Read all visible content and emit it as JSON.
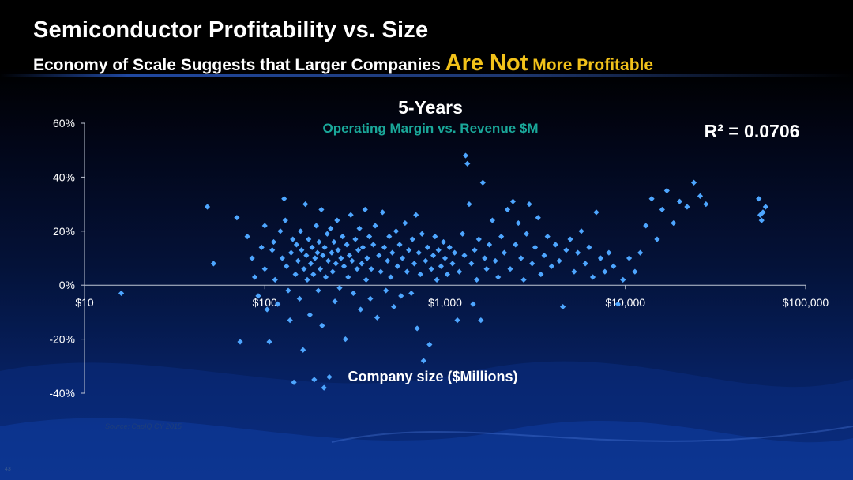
{
  "slide": {
    "title": "Semiconductor Profitability vs. Size",
    "subtitle_prefix": "Economy of Scale Suggests that Larger Companies ",
    "subtitle_highlight": "Are Not",
    "subtitle_suffix": " More Profitable",
    "source": "Source: CapIQ CY 2015",
    "page_number": "43",
    "colors": {
      "background": "#000000",
      "highlight": "#f2c21a",
      "title": "#ffffff",
      "subtitle_chart": "#1aa89a",
      "point": "#4ea6ff"
    }
  },
  "chart_data": {
    "type": "scatter",
    "title": "5-Years",
    "subtitle": "Operating Margin vs. Revenue $M",
    "annotation": "R² = 0.0706",
    "xlabel": "Company size ($Millions)",
    "ylabel": "",
    "x_scale": "log",
    "xlim": [
      10,
      100000
    ],
    "ylim": [
      -40,
      60
    ],
    "x_ticks": [
      10,
      100,
      1000,
      10000,
      100000
    ],
    "x_tick_labels": [
      "$10",
      "$100",
      "$1,000",
      "$10,000",
      "$100,000"
    ],
    "y_ticks": [
      -40,
      -20,
      0,
      20,
      40,
      60
    ],
    "y_tick_labels": [
      "-40%",
      "-20%",
      "0%",
      "20%",
      "40%",
      "60%"
    ],
    "grid": false,
    "series": [
      {
        "marker": "diamond",
        "color": "#4ea6ff",
        "points": [
          [
            16,
            -3
          ],
          [
            48,
            29
          ],
          [
            52,
            8
          ],
          [
            70,
            25
          ],
          [
            73,
            -21
          ],
          [
            80,
            18
          ],
          [
            85,
            10
          ],
          [
            88,
            3
          ],
          [
            92,
            -4
          ],
          [
            96,
            14
          ],
          [
            100,
            22
          ],
          [
            100,
            6
          ],
          [
            103,
            -9
          ],
          [
            106,
            -21
          ],
          [
            110,
            13
          ],
          [
            112,
            16
          ],
          [
            114,
            2
          ],
          [
            118,
            -7
          ],
          [
            122,
            20
          ],
          [
            125,
            10
          ],
          [
            128,
            32
          ],
          [
            130,
            24
          ],
          [
            132,
            7
          ],
          [
            135,
            -2
          ],
          [
            138,
            -13
          ],
          [
            140,
            12
          ],
          [
            143,
            17
          ],
          [
            145,
            -36
          ],
          [
            148,
            4
          ],
          [
            150,
            15
          ],
          [
            153,
            9
          ],
          [
            156,
            -5
          ],
          [
            158,
            20
          ],
          [
            160,
            13
          ],
          [
            163,
            -24
          ],
          [
            165,
            6
          ],
          [
            168,
            30
          ],
          [
            170,
            11
          ],
          [
            172,
            2
          ],
          [
            175,
            17
          ],
          [
            178,
            -11
          ],
          [
            180,
            8
          ],
          [
            183,
            14
          ],
          [
            186,
            4
          ],
          [
            188,
            -35
          ],
          [
            190,
            10
          ],
          [
            193,
            22
          ],
          [
            196,
            12
          ],
          [
            198,
            -2
          ],
          [
            200,
            16
          ],
          [
            203,
            6
          ],
          [
            206,
            28
          ],
          [
            208,
            -15
          ],
          [
            210,
            11
          ],
          [
            213,
            -38
          ],
          [
            215,
            14
          ],
          [
            218,
            3
          ],
          [
            222,
            19
          ],
          [
            225,
            9
          ],
          [
            228,
            -34
          ],
          [
            232,
            21
          ],
          [
            235,
            12
          ],
          [
            238,
            5
          ],
          [
            242,
            16
          ],
          [
            245,
            -6
          ],
          [
            248,
            8
          ],
          [
            252,
            24
          ],
          [
            255,
            13
          ],
          [
            260,
            -1
          ],
          [
            265,
            10
          ],
          [
            270,
            18
          ],
          [
            275,
            7
          ],
          [
            280,
            -20
          ],
          [
            285,
            15
          ],
          [
            290,
            3
          ],
          [
            295,
            11
          ],
          [
            300,
            26
          ],
          [
            305,
            9
          ],
          [
            310,
            -3
          ],
          [
            318,
            17
          ],
          [
            325,
            6
          ],
          [
            330,
            13
          ],
          [
            335,
            21
          ],
          [
            340,
            -9
          ],
          [
            345,
            8
          ],
          [
            350,
            14
          ],
          [
            360,
            28
          ],
          [
            365,
            2
          ],
          [
            370,
            10
          ],
          [
            380,
            18
          ],
          [
            385,
            -5
          ],
          [
            390,
            6
          ],
          [
            400,
            15
          ],
          [
            410,
            22
          ],
          [
            420,
            -12
          ],
          [
            430,
            11
          ],
          [
            440,
            5
          ],
          [
            450,
            27
          ],
          [
            460,
            14
          ],
          [
            470,
            -2
          ],
          [
            480,
            9
          ],
          [
            490,
            18
          ],
          [
            500,
            3
          ],
          [
            510,
            12
          ],
          [
            520,
            -8
          ],
          [
            535,
            20
          ],
          [
            545,
            7
          ],
          [
            560,
            15
          ],
          [
            570,
            -4
          ],
          [
            580,
            10
          ],
          [
            600,
            23
          ],
          [
            615,
            5
          ],
          [
            630,
            13
          ],
          [
            650,
            -3
          ],
          [
            660,
            17
          ],
          [
            675,
            8
          ],
          [
            690,
            26
          ],
          [
            700,
            -16
          ],
          [
            715,
            12
          ],
          [
            730,
            4
          ],
          [
            745,
            19
          ],
          [
            760,
            -28
          ],
          [
            780,
            9
          ],
          [
            800,
            14
          ],
          [
            820,
            -22
          ],
          [
            840,
            6
          ],
          [
            860,
            11
          ],
          [
            880,
            18
          ],
          [
            900,
            2
          ],
          [
            920,
            13
          ],
          [
            950,
            7
          ],
          [
            980,
            16
          ],
          [
            1000,
            10
          ],
          [
            1030,
            4
          ],
          [
            1060,
            14
          ],
          [
            1100,
            8
          ],
          [
            1130,
            12
          ],
          [
            1170,
            -13
          ],
          [
            1200,
            5
          ],
          [
            1250,
            19
          ],
          [
            1280,
            11
          ],
          [
            1300,
            48
          ],
          [
            1330,
            45
          ],
          [
            1360,
            30
          ],
          [
            1400,
            8
          ],
          [
            1430,
            -7
          ],
          [
            1460,
            13
          ],
          [
            1500,
            2
          ],
          [
            1540,
            17
          ],
          [
            1580,
            -13
          ],
          [
            1620,
            38
          ],
          [
            1660,
            10
          ],
          [
            1700,
            6
          ],
          [
            1760,
            15
          ],
          [
            1830,
            24
          ],
          [
            1900,
            9
          ],
          [
            1970,
            3
          ],
          [
            2050,
            18
          ],
          [
            2130,
            12
          ],
          [
            2220,
            28
          ],
          [
            2300,
            6
          ],
          [
            2380,
            31
          ],
          [
            2460,
            15
          ],
          [
            2550,
            23
          ],
          [
            2640,
            10
          ],
          [
            2730,
            2
          ],
          [
            2830,
            19
          ],
          [
            2930,
            30
          ],
          [
            3040,
            8
          ],
          [
            3160,
            14
          ],
          [
            3280,
            25
          ],
          [
            3400,
            4
          ],
          [
            3550,
            11
          ],
          [
            3700,
            18
          ],
          [
            3900,
            7
          ],
          [
            4100,
            15
          ],
          [
            4300,
            9
          ],
          [
            4500,
            -8
          ],
          [
            4700,
            13
          ],
          [
            4950,
            17
          ],
          [
            5200,
            5
          ],
          [
            5450,
            12
          ],
          [
            5700,
            20
          ],
          [
            6000,
            8
          ],
          [
            6300,
            14
          ],
          [
            6600,
            3
          ],
          [
            6900,
            27
          ],
          [
            7300,
            10
          ],
          [
            7700,
            5
          ],
          [
            8100,
            12
          ],
          [
            8600,
            7
          ],
          [
            9100,
            -7
          ],
          [
            9700,
            2
          ],
          [
            10500,
            10
          ],
          [
            11300,
            5
          ],
          [
            12100,
            12
          ],
          [
            13000,
            22
          ],
          [
            14000,
            32
          ],
          [
            15000,
            17
          ],
          [
            16000,
            28
          ],
          [
            17000,
            35
          ],
          [
            18500,
            23
          ],
          [
            20000,
            31
          ],
          [
            22000,
            29
          ],
          [
            24000,
            38
          ],
          [
            26000,
            33
          ],
          [
            28000,
            30
          ],
          [
            55000,
            32
          ],
          [
            56000,
            26
          ],
          [
            57000,
            24
          ],
          [
            58000,
            27
          ],
          [
            60000,
            29
          ]
        ]
      }
    ]
  }
}
